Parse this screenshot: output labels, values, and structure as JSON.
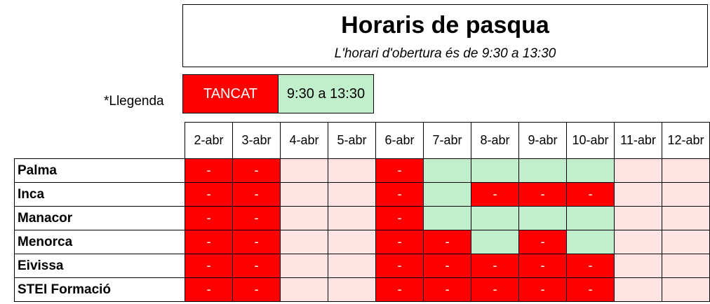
{
  "title": "Horaris de pasqua",
  "subtitle": "L'horari d'obertura és de 9:30 a 13:30",
  "legend": {
    "label": "*Llegenda",
    "closed": "TANCAT",
    "open": "9:30 a 13:30",
    "closed_color": "#ff0000",
    "open_color": "#c1efcb",
    "no_data_color": "#ffe4e4"
  },
  "dates": [
    "2-abr",
    "3-abr",
    "4-abr",
    "5-abr",
    "6-abr",
    "7-abr",
    "8-abr",
    "9-abr",
    "10-abr",
    "11-abr",
    "12-abr"
  ],
  "closed_mark": "-",
  "rows": [
    {
      "name": "Palma",
      "cells": [
        "R",
        "R",
        "P",
        "P",
        "R",
        "G",
        "G",
        "G",
        "G",
        "P",
        "P"
      ]
    },
    {
      "name": "Inca",
      "cells": [
        "R",
        "R",
        "P",
        "P",
        "R",
        "G",
        "R",
        "R",
        "R",
        "P",
        "P"
      ]
    },
    {
      "name": "Manacor",
      "cells": [
        "R",
        "R",
        "P",
        "P",
        "R",
        "G",
        "G",
        "G",
        "G",
        "P",
        "P"
      ]
    },
    {
      "name": "Menorca",
      "cells": [
        "R",
        "R",
        "P",
        "P",
        "R",
        "R",
        "G",
        "R",
        "G",
        "P",
        "P"
      ]
    },
    {
      "name": "Eivissa",
      "cells": [
        "R",
        "R",
        "P",
        "P",
        "R",
        "R",
        "R",
        "R",
        "R",
        "P",
        "P"
      ]
    },
    {
      "name": "STEI Formació",
      "cells": [
        "R",
        "R",
        "P",
        "P",
        "R",
        "R",
        "R",
        "R",
        "R",
        "P",
        "P"
      ]
    }
  ]
}
